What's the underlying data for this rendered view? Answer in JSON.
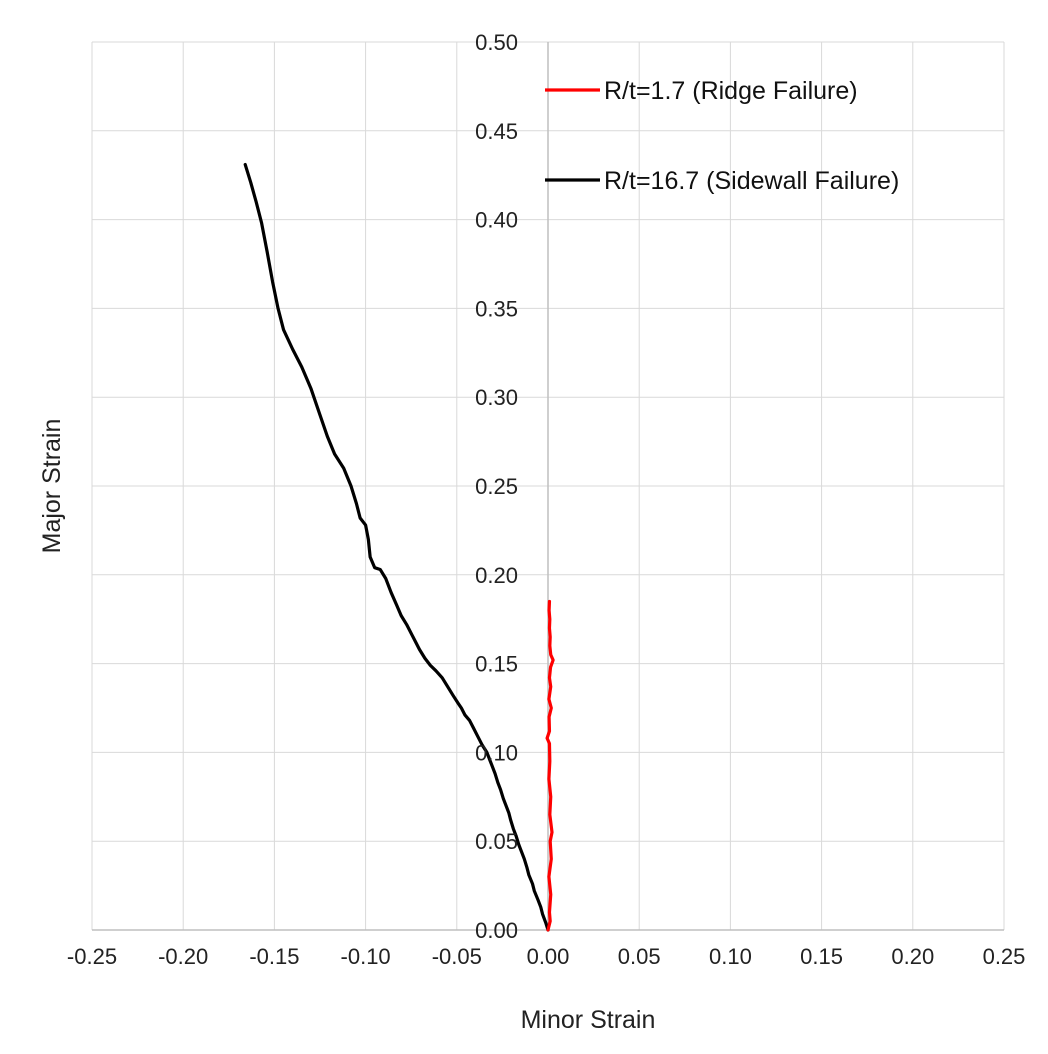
{
  "chart_data": {
    "type": "line",
    "title": "",
    "xlabel": "Minor Strain",
    "ylabel": "Major Strain",
    "xlim": [
      -0.25,
      0.25
    ],
    "ylim": [
      0,
      0.5
    ],
    "x_ticks": [
      -0.25,
      -0.2,
      -0.15,
      -0.1,
      -0.05,
      0,
      0.05,
      0.1,
      0.15,
      0.2,
      0.25
    ],
    "x_tick_labels": [
      "-0.25",
      "-0.20",
      "-0.15",
      "-0.10",
      "-0.05",
      "0.00",
      "0.05",
      "0.10",
      "0.15",
      "0.20",
      "0.25"
    ],
    "y_ticks": [
      0,
      0.05,
      0.1,
      0.15,
      0.2,
      0.25,
      0.3,
      0.35,
      0.4,
      0.45,
      0.5
    ],
    "y_tick_labels": [
      "0.00",
      "0.05",
      "0.10",
      "0.15",
      "0.20",
      "0.25",
      "0.30",
      "0.35",
      "0.40",
      "0.45",
      "0.50"
    ],
    "grid": true,
    "legend_position": "top-right",
    "series": [
      {
        "name": "R/t=1.7 (Ridge Failure)",
        "color": "#ff0000",
        "points": [
          [
            0.0,
            0.0
          ],
          [
            0.0012,
            0.005
          ],
          [
            0.0008,
            0.01
          ],
          [
            0.0015,
            0.02
          ],
          [
            0.0005,
            0.03
          ],
          [
            0.0018,
            0.04
          ],
          [
            0.0012,
            0.05
          ],
          [
            0.0022,
            0.055
          ],
          [
            0.001,
            0.065
          ],
          [
            0.0015,
            0.075
          ],
          [
            0.0005,
            0.085
          ],
          [
            0.001,
            0.095
          ],
          [
            0.0008,
            0.105
          ],
          [
            -0.0005,
            0.108
          ],
          [
            0.0008,
            0.112
          ],
          [
            0.0006,
            0.12
          ],
          [
            0.0018,
            0.125
          ],
          [
            0.0005,
            0.13
          ],
          [
            0.0015,
            0.137
          ],
          [
            0.0008,
            0.142
          ],
          [
            0.0014,
            0.148
          ],
          [
            0.0028,
            0.152
          ],
          [
            0.0015,
            0.155
          ],
          [
            0.001,
            0.16
          ],
          [
            0.0012,
            0.165
          ],
          [
            0.0008,
            0.17
          ],
          [
            0.001,
            0.175
          ],
          [
            0.0006,
            0.18
          ],
          [
            0.0008,
            0.185
          ]
        ]
      },
      {
        "name": "R/t=16.7 (Sidewall Failure)",
        "color": "#000000",
        "points": [
          [
            0.0,
            0.0
          ],
          [
            -0.0012,
            0.004
          ],
          [
            -0.003,
            0.009
          ],
          [
            -0.004,
            0.013
          ],
          [
            -0.0055,
            0.017
          ],
          [
            -0.0075,
            0.022
          ],
          [
            -0.0085,
            0.026
          ],
          [
            -0.0105,
            0.031
          ],
          [
            -0.0115,
            0.035
          ],
          [
            -0.013,
            0.04
          ],
          [
            -0.0145,
            0.044
          ],
          [
            -0.016,
            0.048
          ],
          [
            -0.0175,
            0.053
          ],
          [
            -0.019,
            0.057
          ],
          [
            -0.0205,
            0.062
          ],
          [
            -0.0215,
            0.066
          ],
          [
            -0.023,
            0.07
          ],
          [
            -0.0245,
            0.074
          ],
          [
            -0.026,
            0.079
          ],
          [
            -0.0275,
            0.083
          ],
          [
            -0.029,
            0.088
          ],
          [
            -0.0305,
            0.092
          ],
          [
            -0.032,
            0.096
          ],
          [
            -0.0335,
            0.1
          ],
          [
            -0.036,
            0.104
          ],
          [
            -0.0385,
            0.109
          ],
          [
            -0.041,
            0.114
          ],
          [
            -0.043,
            0.118
          ],
          [
            -0.0455,
            0.121
          ],
          [
            -0.0475,
            0.125
          ],
          [
            -0.0495,
            0.128
          ],
          [
            -0.052,
            0.132
          ],
          [
            -0.055,
            0.137
          ],
          [
            -0.058,
            0.142
          ],
          [
            -0.0615,
            0.146
          ],
          [
            -0.0645,
            0.149
          ],
          [
            -0.0675,
            0.153
          ],
          [
            -0.0705,
            0.158
          ],
          [
            -0.0725,
            0.162
          ],
          [
            -0.0745,
            0.166
          ],
          [
            -0.0775,
            0.172
          ],
          [
            -0.0805,
            0.177
          ],
          [
            -0.083,
            0.183
          ],
          [
            -0.086,
            0.19
          ],
          [
            -0.089,
            0.198
          ],
          [
            -0.092,
            0.203
          ],
          [
            -0.095,
            0.204
          ],
          [
            -0.0975,
            0.21
          ],
          [
            -0.0985,
            0.22
          ],
          [
            -0.1,
            0.228
          ],
          [
            -0.103,
            0.232
          ],
          [
            -0.105,
            0.24
          ],
          [
            -0.108,
            0.25
          ],
          [
            -0.112,
            0.26
          ],
          [
            -0.117,
            0.268
          ],
          [
            -0.121,
            0.278
          ],
          [
            -0.125,
            0.29
          ],
          [
            -0.13,
            0.305
          ],
          [
            -0.135,
            0.317
          ],
          [
            -0.14,
            0.327
          ],
          [
            -0.145,
            0.338
          ],
          [
            -0.148,
            0.35
          ],
          [
            -0.151,
            0.365
          ],
          [
            -0.154,
            0.382
          ],
          [
            -0.157,
            0.398
          ],
          [
            -0.16,
            0.41
          ],
          [
            -0.163,
            0.421
          ],
          [
            -0.166,
            0.431
          ]
        ]
      }
    ]
  }
}
